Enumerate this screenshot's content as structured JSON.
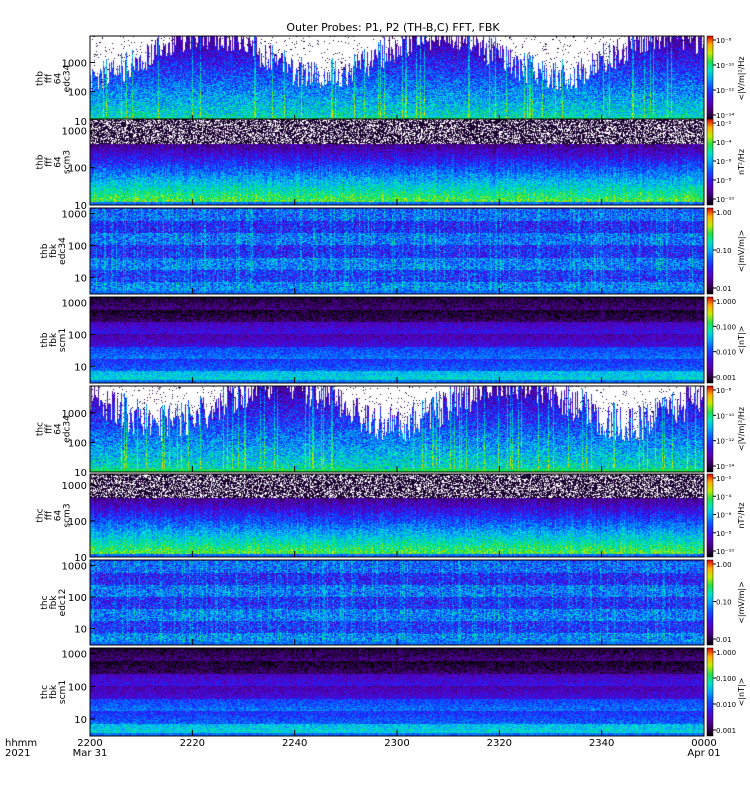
{
  "chart_data": {
    "type": "heatmap",
    "title": "Outer Probes: P1, P2 (TH-B,C) FFT, FBK",
    "xaxis": {
      "label_lines": [
        "hhmm",
        "2021"
      ],
      "ticks": [
        {
          "value": 0,
          "label": "2200",
          "sublabel": "Mar 31"
        },
        {
          "value": 20,
          "label": "2220",
          "sublabel": ""
        },
        {
          "value": 40,
          "label": "2240",
          "sublabel": ""
        },
        {
          "value": 60,
          "label": "2300",
          "sublabel": ""
        },
        {
          "value": 80,
          "label": "2320",
          "sublabel": ""
        },
        {
          "value": 100,
          "label": "2340",
          "sublabel": ""
        },
        {
          "value": 120,
          "label": "0000",
          "sublabel": "Apr 01"
        }
      ],
      "range": [
        0,
        120
      ]
    },
    "panels": [
      {
        "ylabel_lines": [
          "thb",
          "fff",
          "64",
          "edc34"
        ],
        "yticks": [
          "1000",
          "100",
          "10"
        ],
        "ylog_range": [
          10,
          8000
        ],
        "colorbar": {
          "label": "<|V/m|²/Hz",
          "ticks": [
            "10⁻⁸",
            "10⁻¹⁰",
            "10⁻¹²",
            "10⁻¹⁴"
          ],
          "log": true
        },
        "pattern": "fft_e",
        "seed": 11,
        "activity": 0.55,
        "background": "white"
      },
      {
        "ylabel_lines": [
          "thb",
          "fff",
          "64",
          "scm3"
        ],
        "yticks": [
          "1000",
          "100",
          "10"
        ],
        "ylog_range": [
          10,
          2000
        ],
        "colorbar": {
          "label": "nT²/Hz",
          "ticks": [
            "10⁻²",
            "10⁻⁴",
            "10⁻⁶",
            "10⁻⁸",
            "10⁻¹⁰"
          ],
          "log": true
        },
        "pattern": "fft_b",
        "seed": 23,
        "activity": 0.5,
        "background": "dark"
      },
      {
        "ylabel_lines": [
          "thb",
          "fbk",
          "edc34"
        ],
        "yticks": [
          "1000",
          "100",
          "10"
        ],
        "ylog_range": [
          3,
          1500
        ],
        "colorbar": {
          "label": "<|mV/m|>",
          "ticks": [
            "1.00",
            "0.10",
            "0.01"
          ],
          "log": true
        },
        "pattern": "fbk_e",
        "seed": 37,
        "activity": 0.45,
        "background": "dark"
      },
      {
        "ylabel_lines": [
          "thb",
          "fbk",
          "scm1"
        ],
        "yticks": [
          "1000",
          "100",
          "10"
        ],
        "ylog_range": [
          3,
          1500
        ],
        "colorbar": {
          "label": "<|nT|>",
          "ticks": [
            "1.000",
            "0.100",
            "0.010",
            "0.001"
          ],
          "log": true
        },
        "pattern": "fbk_b",
        "seed": 41,
        "activity": 0.35,
        "background": "dark"
      },
      {
        "ylabel_lines": [
          "thc",
          "fff",
          "64",
          "edc34"
        ],
        "yticks": [
          "1000",
          "100",
          "10"
        ],
        "ylog_range": [
          10,
          8000
        ],
        "colorbar": {
          "label": "<|V/m|²/Hz",
          "ticks": [
            "10⁻⁸",
            "10⁻¹⁰",
            "10⁻¹²",
            "10⁻¹⁴"
          ],
          "log": true
        },
        "pattern": "fft_e",
        "seed": 53,
        "activity": 0.65,
        "background": "white"
      },
      {
        "ylabel_lines": [
          "thc",
          "fff",
          "64",
          "scm3"
        ],
        "yticks": [
          "1000",
          "100",
          "10"
        ],
        "ylog_range": [
          10,
          2000
        ],
        "colorbar": {
          "label": "nT²/Hz",
          "ticks": [
            "10⁻²",
            "10⁻⁴",
            "10⁻⁶",
            "10⁻⁸",
            "10⁻¹⁰"
          ],
          "log": true
        },
        "pattern": "fft_b",
        "seed": 67,
        "activity": 0.6,
        "background": "dark"
      },
      {
        "ylabel_lines": [
          "thc",
          "fbk",
          "edc12"
        ],
        "yticks": [
          "1000",
          "100",
          "10"
        ],
        "ylog_range": [
          3,
          1500
        ],
        "colorbar": {
          "label": "<|mV/m|>",
          "ticks": [
            "1.00",
            "0.10",
            "0.01"
          ],
          "log": true
        },
        "pattern": "fbk_e",
        "seed": 79,
        "activity": 0.4,
        "background": "dark"
      },
      {
        "ylabel_lines": [
          "thc",
          "fbk",
          "scm1"
        ],
        "yticks": [
          "1000",
          "100",
          "10"
        ],
        "ylog_range": [
          3,
          1500
        ],
        "colorbar": {
          "label": "<|nT|>",
          "ticks": [
            "1.000",
            "0.100",
            "0.010",
            "0.001"
          ],
          "log": true
        },
        "pattern": "fbk_b",
        "seed": 89,
        "activity": 0.3,
        "background": "dark"
      }
    ]
  }
}
